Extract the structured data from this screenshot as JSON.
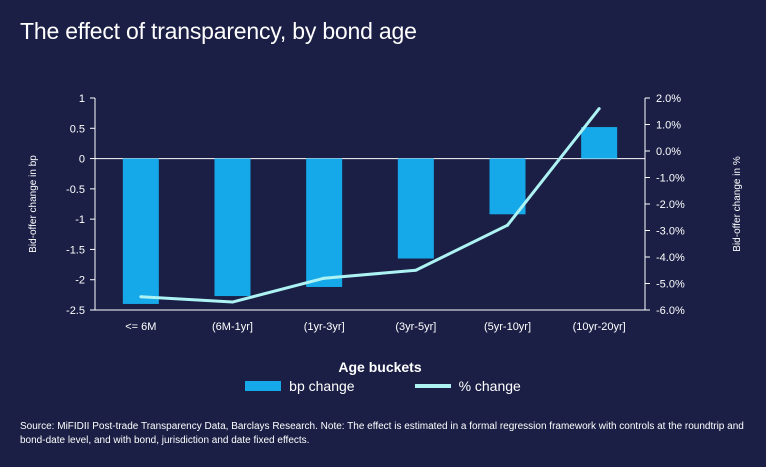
{
  "title": "The effect of transparency, by bond age",
  "source_note": "Source: MiFIDII Post-trade Transparency Data, Barclays Research. Note: The effect is estimated in a formal regression framework with controls at the roundtrip and bond-date level, and with bond, jurisdiction and date fixed effects.",
  "colors": {
    "background": "#1b1f45",
    "bar": "#16a9e9",
    "line": "#aef3f4",
    "text": "#ffffff"
  },
  "chart_data": {
    "type": "bar",
    "title": "The effect of transparency, by bond age",
    "xlabel": "Age buckets",
    "ylabel": "Bid-offer change in bp",
    "y2label": "Bid-offer change in %",
    "categories": [
      "<= 6M",
      "(6M-1yr]",
      "(1yr-3yr]",
      "(3yr-5yr]",
      "(5yr-10yr]",
      "(10yr-20yr]"
    ],
    "ylim": [
      -2.5,
      1
    ],
    "y_ticks": [
      1,
      0.5,
      0,
      -0.5,
      -1,
      -1.5,
      -2,
      -2.5
    ],
    "y_tick_labels": [
      "1",
      "0.5",
      "0",
      "-0.5",
      "-1",
      "-1.5",
      "-2",
      "-2.5"
    ],
    "y2lim": [
      -6.0,
      2.0
    ],
    "y2_ticks": [
      2,
      1,
      0,
      -1,
      -2,
      -3,
      -4,
      -5,
      -6
    ],
    "y2_tick_labels": [
      "2.0%",
      "1.0%",
      "0.0%",
      "-1.0%",
      "-2.0%",
      "-3.0%",
      "-4.0%",
      "-5.0%",
      "-6.0%"
    ],
    "series": [
      {
        "name": "bp change",
        "type": "bar",
        "axis": "left",
        "values": [
          -2.4,
          -2.27,
          -2.12,
          -1.65,
          -0.92,
          0.52
        ]
      },
      {
        "name": "% change",
        "type": "line",
        "axis": "right",
        "values": [
          -5.5,
          -5.7,
          -4.8,
          -4.5,
          -2.8,
          1.6
        ]
      }
    ],
    "legend_position": "bottom-center",
    "grid": false
  }
}
